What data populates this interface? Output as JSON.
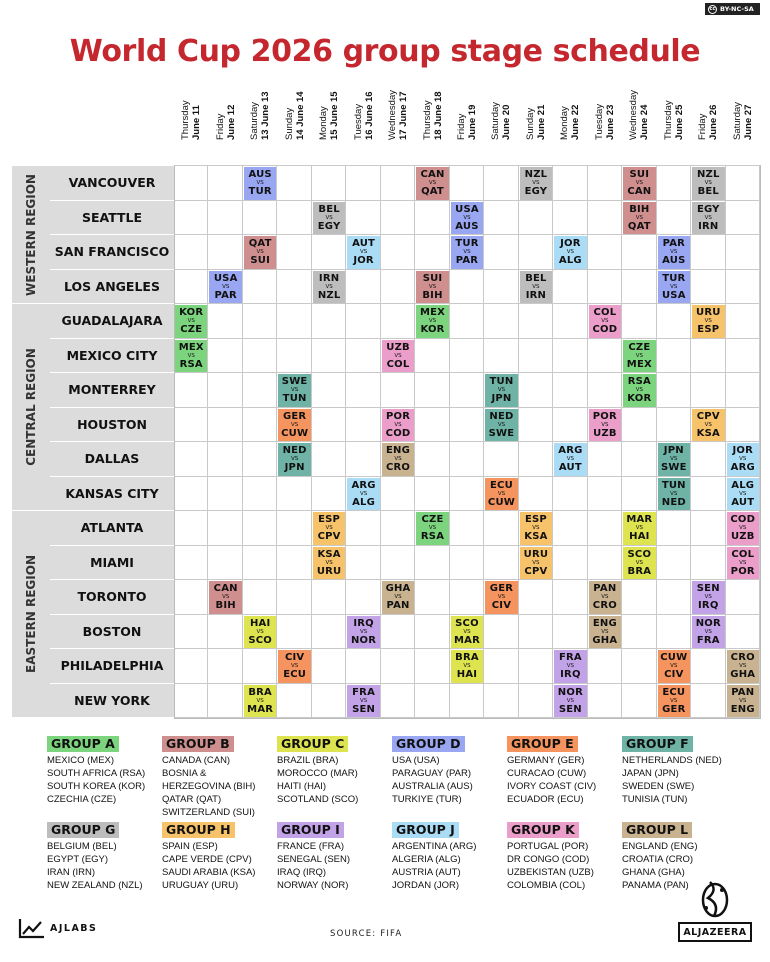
{
  "license": {
    "label": "BY-NC-SA"
  },
  "title": "World Cup 2026 group stage schedule",
  "colors": {
    "title": "#c5272f",
    "A": "#7cd57e",
    "B": "#cf8f8f",
    "C": "#dde44f",
    "D": "#99a6f2",
    "E": "#f5945e",
    "F": "#6fb3a6",
    "G": "#bdbdbd",
    "H": "#f7c36a",
    "I": "#c3a3e8",
    "J": "#aadcf6",
    "K": "#ea9ec9",
    "L": "#c8b290"
  },
  "days": [
    {
      "day": "Thursday",
      "date": "June 11"
    },
    {
      "day": "Friday",
      "date": "June 12"
    },
    {
      "day": "Saturday",
      "date": "13 June 13"
    },
    {
      "day": "Sunday",
      "date": "14 June 14"
    },
    {
      "day": "Monday",
      "date": "15 June 15"
    },
    {
      "day": "Tuesday",
      "date": "16 June 16"
    },
    {
      "day": "Wednesday",
      "date": "17 June 17"
    },
    {
      "day": "Thursday",
      "date": "18 June 18"
    },
    {
      "day": "Friday",
      "date": "June 19"
    },
    {
      "day": "Saturday",
      "date": "June 20"
    },
    {
      "day": "Sunday",
      "date": "June 21"
    },
    {
      "day": "Monday",
      "date": "June 22"
    },
    {
      "day": "Tuesday",
      "date": "June 23"
    },
    {
      "day": "Wednesday",
      "date": "June 24"
    },
    {
      "day": "Thursday",
      "date": "June 25"
    },
    {
      "day": "Friday",
      "date": "June 26"
    },
    {
      "day": "Saturday",
      "date": "June 27"
    }
  ],
  "regions": [
    {
      "name": "WESTERN REGION",
      "rows": 4
    },
    {
      "name": "CENTRAL REGION",
      "rows": 6
    },
    {
      "name": "EASTERN REGION",
      "rows": 6
    }
  ],
  "cities": [
    "VANCOUVER",
    "SEATTLE",
    "SAN FRANCISCO",
    "LOS ANGELES",
    "GUADALAJARA",
    "MEXICO CITY",
    "MONTERREY",
    "HOUSTON",
    "DALLAS",
    "KANSAS CITY",
    "ATLANTA",
    "MIAMI",
    "TORONTO",
    "BOSTON",
    "PHILADELPHIA",
    "NEW YORK"
  ],
  "vs_label": "VS",
  "matches": [
    {
      "city": 0,
      "day": 2,
      "home": "AUS",
      "away": "TUR",
      "group": "D"
    },
    {
      "city": 0,
      "day": 7,
      "home": "CAN",
      "away": "QAT",
      "group": "B"
    },
    {
      "city": 0,
      "day": 10,
      "home": "NZL",
      "away": "EGY",
      "group": "G"
    },
    {
      "city": 0,
      "day": 13,
      "home": "SUI",
      "away": "CAN",
      "group": "B"
    },
    {
      "city": 0,
      "day": 15,
      "home": "NZL",
      "away": "BEL",
      "group": "G"
    },
    {
      "city": 1,
      "day": 4,
      "home": "BEL",
      "away": "EGY",
      "group": "G"
    },
    {
      "city": 1,
      "day": 8,
      "home": "USA",
      "away": "AUS",
      "group": "D"
    },
    {
      "city": 1,
      "day": 13,
      "home": "BIH",
      "away": "QAT",
      "group": "B"
    },
    {
      "city": 1,
      "day": 15,
      "home": "EGY",
      "away": "IRN",
      "group": "G"
    },
    {
      "city": 2,
      "day": 2,
      "home": "QAT",
      "away": "SUI",
      "group": "B"
    },
    {
      "city": 2,
      "day": 5,
      "home": "AUT",
      "away": "JOR",
      "group": "J"
    },
    {
      "city": 2,
      "day": 8,
      "home": "TUR",
      "away": "PAR",
      "group": "D"
    },
    {
      "city": 2,
      "day": 11,
      "home": "JOR",
      "away": "ALG",
      "group": "J"
    },
    {
      "city": 2,
      "day": 14,
      "home": "PAR",
      "away": "AUS",
      "group": "D"
    },
    {
      "city": 3,
      "day": 1,
      "home": "USA",
      "away": "PAR",
      "group": "D"
    },
    {
      "city": 3,
      "day": 4,
      "home": "IRN",
      "away": "NZL",
      "group": "G"
    },
    {
      "city": 3,
      "day": 7,
      "home": "SUI",
      "away": "BIH",
      "group": "B"
    },
    {
      "city": 3,
      "day": 10,
      "home": "BEL",
      "away": "IRN",
      "group": "G"
    },
    {
      "city": 3,
      "day": 14,
      "home": "TUR",
      "away": "USA",
      "group": "D"
    },
    {
      "city": 4,
      "day": 0,
      "home": "KOR",
      "away": "CZE",
      "group": "A"
    },
    {
      "city": 4,
      "day": 7,
      "home": "MEX",
      "away": "KOR",
      "group": "A"
    },
    {
      "city": 4,
      "day": 12,
      "home": "COL",
      "away": "COD",
      "group": "K"
    },
    {
      "city": 4,
      "day": 15,
      "home": "URU",
      "away": "ESP",
      "group": "H"
    },
    {
      "city": 5,
      "day": 0,
      "home": "MEX",
      "away": "RSA",
      "group": "A"
    },
    {
      "city": 5,
      "day": 6,
      "home": "UZB",
      "away": "COL",
      "group": "K"
    },
    {
      "city": 5,
      "day": 13,
      "home": "CZE",
      "away": "MEX",
      "group": "A"
    },
    {
      "city": 6,
      "day": 3,
      "home": "SWE",
      "away": "TUN",
      "group": "F"
    },
    {
      "city": 6,
      "day": 9,
      "home": "TUN",
      "away": "JPN",
      "group": "F"
    },
    {
      "city": 6,
      "day": 13,
      "home": "RSA",
      "away": "KOR",
      "group": "A"
    },
    {
      "city": 7,
      "day": 3,
      "home": "GER",
      "away": "CUW",
      "group": "E"
    },
    {
      "city": 7,
      "day": 6,
      "home": "POR",
      "away": "COD",
      "group": "K"
    },
    {
      "city": 7,
      "day": 9,
      "home": "NED",
      "away": "SWE",
      "group": "F"
    },
    {
      "city": 7,
      "day": 12,
      "home": "POR",
      "away": "UZB",
      "group": "K"
    },
    {
      "city": 7,
      "day": 15,
      "home": "CPV",
      "away": "KSA",
      "group": "H"
    },
    {
      "city": 8,
      "day": 3,
      "home": "NED",
      "away": "JPN",
      "group": "F"
    },
    {
      "city": 8,
      "day": 6,
      "home": "ENG",
      "away": "CRO",
      "group": "L"
    },
    {
      "city": 8,
      "day": 11,
      "home": "ARG",
      "away": "AUT",
      "group": "J"
    },
    {
      "city": 8,
      "day": 14,
      "home": "JPN",
      "away": "SWE",
      "group": "F"
    },
    {
      "city": 8,
      "day": 16,
      "home": "JOR",
      "away": "ARG",
      "group": "J"
    },
    {
      "city": 9,
      "day": 5,
      "home": "ARG",
      "away": "ALG",
      "group": "J"
    },
    {
      "city": 9,
      "day": 9,
      "home": "ECU",
      "away": "CUW",
      "group": "E"
    },
    {
      "city": 9,
      "day": 14,
      "home": "TUN",
      "away": "NED",
      "group": "F"
    },
    {
      "city": 9,
      "day": 16,
      "home": "ALG",
      "away": "AUT",
      "group": "J"
    },
    {
      "city": 10,
      "day": 4,
      "home": "ESP",
      "away": "CPV",
      "group": "H"
    },
    {
      "city": 10,
      "day": 7,
      "home": "CZE",
      "away": "RSA",
      "group": "A"
    },
    {
      "city": 10,
      "day": 10,
      "home": "ESP",
      "away": "KSA",
      "group": "H"
    },
    {
      "city": 10,
      "day": 13,
      "home": "MAR",
      "away": "HAI",
      "group": "C"
    },
    {
      "city": 10,
      "day": 16,
      "home": "COD",
      "away": "UZB",
      "group": "K"
    },
    {
      "city": 11,
      "day": 4,
      "home": "KSA",
      "away": "URU",
      "group": "H"
    },
    {
      "city": 11,
      "day": 10,
      "home": "URU",
      "away": "CPV",
      "group": "H"
    },
    {
      "city": 11,
      "day": 13,
      "home": "SCO",
      "away": "BRA",
      "group": "C"
    },
    {
      "city": 11,
      "day": 16,
      "home": "COL",
      "away": "POR",
      "group": "K"
    },
    {
      "city": 12,
      "day": 1,
      "home": "CAN",
      "away": "BIH",
      "group": "B"
    },
    {
      "city": 12,
      "day": 6,
      "home": "GHA",
      "away": "PAN",
      "group": "L"
    },
    {
      "city": 12,
      "day": 9,
      "home": "GER",
      "away": "CIV",
      "group": "E"
    },
    {
      "city": 12,
      "day": 12,
      "home": "PAN",
      "away": "CRO",
      "group": "L"
    },
    {
      "city": 12,
      "day": 15,
      "home": "SEN",
      "away": "IRQ",
      "group": "I"
    },
    {
      "city": 13,
      "day": 2,
      "home": "HAI",
      "away": "SCO",
      "group": "C"
    },
    {
      "city": 13,
      "day": 5,
      "home": "IRQ",
      "away": "NOR",
      "group": "I"
    },
    {
      "city": 13,
      "day": 8,
      "home": "SCO",
      "away": "MAR",
      "group": "C"
    },
    {
      "city": 13,
      "day": 12,
      "home": "ENG",
      "away": "GHA",
      "group": "L"
    },
    {
      "city": 13,
      "day": 15,
      "home": "NOR",
      "away": "FRA",
      "group": "I"
    },
    {
      "city": 14,
      "day": 3,
      "home": "CIV",
      "away": "ECU",
      "group": "E"
    },
    {
      "city": 14,
      "day": 8,
      "home": "BRA",
      "away": "HAI",
      "group": "C"
    },
    {
      "city": 14,
      "day": 11,
      "home": "FRA",
      "away": "IRQ",
      "group": "I"
    },
    {
      "city": 14,
      "day": 14,
      "home": "CUW",
      "away": "CIV",
      "group": "E"
    },
    {
      "city": 14,
      "day": 16,
      "home": "CRO",
      "away": "GHA",
      "group": "L"
    },
    {
      "city": 15,
      "day": 2,
      "home": "BRA",
      "away": "MAR",
      "group": "C"
    },
    {
      "city": 15,
      "day": 5,
      "home": "FRA",
      "away": "SEN",
      "group": "I"
    },
    {
      "city": 15,
      "day": 11,
      "home": "NOR",
      "away": "SEN",
      "group": "I"
    },
    {
      "city": 15,
      "day": 14,
      "home": "ECU",
      "away": "GER",
      "group": "E"
    },
    {
      "city": 15,
      "day": 16,
      "home": "PAN",
      "away": "ENG",
      "group": "L"
    }
  ],
  "groups": [
    {
      "id": "A",
      "label": "GROUP A",
      "teams": [
        "MEXICO (MEX)",
        "SOUTH AFRICA (RSA)",
        "SOUTH KOREA (KOR)",
        "CZECHIA (CZE)"
      ]
    },
    {
      "id": "B",
      "label": "GROUP B",
      "teams": [
        "CANADA (CAN)",
        "BOSNIA & HERZEGOVINA (BIH)",
        "QATAR (QAT)",
        "SWITZERLAND (SUI)"
      ]
    },
    {
      "id": "C",
      "label": "GROUP C",
      "teams": [
        "BRAZIL (BRA)",
        "MOROCCO (MAR)",
        "HAITI (HAI)",
        "SCOTLAND (SCO)"
      ]
    },
    {
      "id": "D",
      "label": "GROUP D",
      "teams": [
        "USA (USA)",
        "PARAGUAY (PAR)",
        "AUSTRALIA (AUS)",
        "TURKIYE (TUR)"
      ]
    },
    {
      "id": "E",
      "label": "GROUP E",
      "teams": [
        "GERMANY (GER)",
        "CURACAO (CUW)",
        "IVORY COAST (CIV)",
        "ECUADOR (ECU)"
      ]
    },
    {
      "id": "F",
      "label": "GROUP F",
      "teams": [
        "NETHERLANDS (NED)",
        "JAPAN (JPN)",
        "SWEDEN (SWE)",
        "TUNISIA (TUN)"
      ]
    },
    {
      "id": "G",
      "label": "GROUP G",
      "teams": [
        "BELGIUM (BEL)",
        "EGYPT (EGY)",
        "IRAN (IRN)",
        "NEW ZEALAND (NZL)"
      ]
    },
    {
      "id": "H",
      "label": "GROUP H",
      "teams": [
        "SPAIN (ESP)",
        "CAPE VERDE (CPV)",
        "SAUDI ARABIA (KSA)",
        "URUGUAY (URU)"
      ]
    },
    {
      "id": "I",
      "label": "GROUP I",
      "teams": [
        "FRANCE (FRA)",
        "SENEGAL (SEN)",
        "IRAQ (IRQ)",
        "NORWAY (NOR)"
      ]
    },
    {
      "id": "J",
      "label": "GROUP J",
      "teams": [
        "ARGENTINA (ARG)",
        "ALGERIA (ALG)",
        "AUSTRIA (AUT)",
        "JORDAN (JOR)"
      ]
    },
    {
      "id": "K",
      "label": "GROUP K",
      "teams": [
        "PORTUGAL (POR)",
        "DR CONGO (COD)",
        "UZBEKISTAN (UZB)",
        "COLOMBIA (COL)"
      ]
    },
    {
      "id": "L",
      "label": "GROUP L",
      "teams": [
        "ENGLAND (ENG)",
        "CROATIA (CRO)",
        "GHANA (GHA)",
        "PANAMA (PAN)"
      ]
    }
  ],
  "footer": {
    "ajlabs_label": "AJLABS",
    "source": "SOURCE: FIFA",
    "aljazeera_label": "ALJAZEERA"
  }
}
